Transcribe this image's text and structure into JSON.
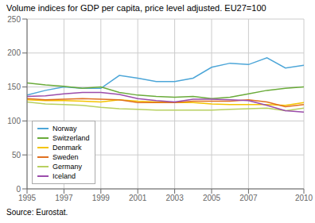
{
  "chart_data": {
    "type": "line",
    "title": "Volume indices for GDP per capita, price level adjusted. EU27=100",
    "annotations": [
      "Source: Eurostat."
    ],
    "x": [
      1995,
      1996,
      1997,
      1998,
      1999,
      2000,
      2001,
      2002,
      2003,
      2004,
      2005,
      2006,
      2007,
      2008,
      2009,
      2010
    ],
    "series": [
      {
        "name": "Norway",
        "color": "#4da6d8",
        "values": [
          138,
          145,
          150,
          148,
          148,
          167,
          163,
          158,
          158,
          163,
          179,
          185,
          183,
          193,
          178,
          182
        ]
      },
      {
        "name": "Switzerland",
        "color": "#6aab3a",
        "values": [
          156,
          153,
          151,
          148,
          150,
          142,
          138,
          136,
          135,
          136,
          133,
          135,
          140,
          145,
          148,
          150
        ]
      },
      {
        "name": "Denmark",
        "color": "#f5c400",
        "values": [
          131,
          130,
          130,
          129,
          128,
          131,
          129,
          128,
          127,
          127,
          125,
          124,
          124,
          124,
          123,
          127
        ]
      },
      {
        "name": "Sweden",
        "color": "#e07020",
        "values": [
          133,
          131,
          132,
          133,
          132,
          131,
          127,
          127,
          127,
          129,
          129,
          129,
          131,
          128,
          121,
          124
        ]
      },
      {
        "name": "Germany",
        "color": "#b8d060",
        "values": [
          128,
          125,
          124,
          123,
          120,
          118,
          117,
          116,
          116,
          116,
          116,
          117,
          118,
          119,
          115,
          119
        ]
      },
      {
        "name": "Iceland",
        "color": "#9b4dab",
        "values": [
          136,
          137,
          140,
          142,
          142,
          139,
          133,
          130,
          128,
          132,
          132,
          131,
          130,
          123,
          115,
          113
        ]
      }
    ],
    "xlim": [
      1995,
      2010
    ],
    "xticks": [
      1995,
      1997,
      1999,
      2001,
      2003,
      2005,
      2007,
      2010
    ],
    "ylim": [
      0,
      250
    ],
    "yticks": [
      0,
      50,
      100,
      150,
      200,
      250
    ],
    "grid": true,
    "legend": "lower left"
  }
}
